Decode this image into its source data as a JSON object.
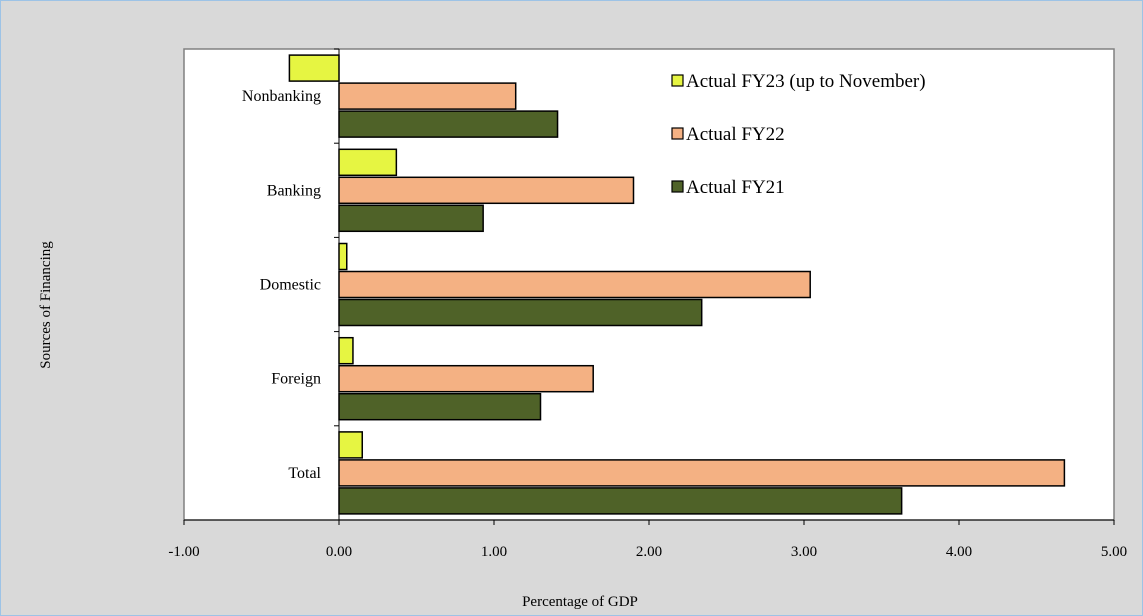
{
  "chart_data": {
    "type": "bar",
    "orientation": "horizontal",
    "title": "",
    "xlabel": "Percentage of  GDP",
    "ylabel": "Sources of Financing",
    "xlim": [
      -1,
      5
    ],
    "xticks": [
      "-1.00",
      "0.00",
      "1.00",
      "2.00",
      "3.00",
      "4.00",
      "5.00"
    ],
    "categories": [
      "Nonbanking",
      "Banking",
      "Domestic",
      "Foreign",
      "Total"
    ],
    "series": [
      {
        "name": "Actual FY23 (up to November)",
        "color": "#e6f542",
        "values": [
          -0.32,
          0.37,
          0.05,
          0.09,
          0.15
        ]
      },
      {
        "name": "Actual FY22",
        "color": "#f4b183",
        "values": [
          1.14,
          1.9,
          3.04,
          1.64,
          4.68
        ]
      },
      {
        "name": "Actual FY21",
        "color": "#4f6228",
        "values": [
          1.41,
          0.93,
          2.34,
          1.3,
          3.63
        ]
      }
    ],
    "legend_position": "top-right",
    "grid": false
  }
}
